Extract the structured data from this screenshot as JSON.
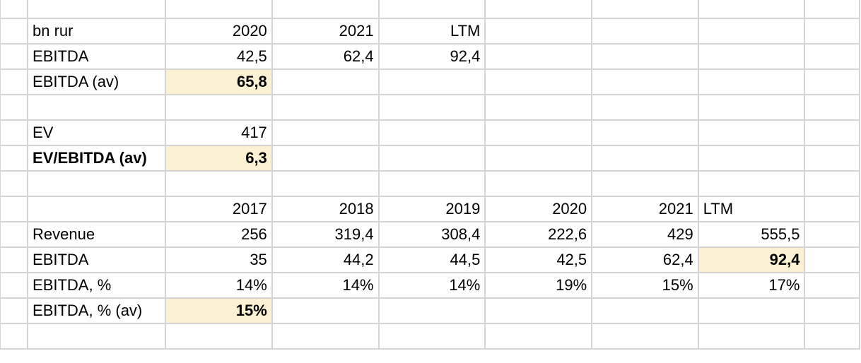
{
  "sheet": {
    "rows": [
      [
        "",
        "",
        "",
        "",
        "",
        "",
        "",
        "",
        ""
      ],
      [
        "",
        "bn rur",
        "2020",
        "2021",
        "LTM",
        "",
        "",
        "",
        ""
      ],
      [
        "",
        "EBITDA",
        "42,5",
        "62,4",
        "92,4",
        "",
        "",
        "",
        ""
      ],
      [
        "",
        "EBITDA (av)",
        "65,8",
        "",
        "",
        "",
        "",
        "",
        ""
      ],
      [
        "",
        "",
        "",
        "",
        "",
        "",
        "",
        "",
        ""
      ],
      [
        "",
        "EV",
        "417",
        "",
        "",
        "",
        "",
        "",
        ""
      ],
      [
        "",
        "EV/EBITDA (av)",
        "6,3",
        "",
        "",
        "",
        "",
        "",
        ""
      ],
      [
        "",
        "",
        "",
        "",
        "",
        "",
        "",
        "",
        ""
      ],
      [
        "",
        "",
        "2017",
        "2018",
        "2019",
        "2020",
        "2021",
        "LTM",
        ""
      ],
      [
        "",
        "Revenue",
        "256",
        "319,4",
        "308,4",
        "222,6",
        "429",
        "555,5",
        ""
      ],
      [
        "",
        "EBITDA",
        "35",
        "44,2",
        "44,5",
        "42,5",
        "62,4",
        "92,4",
        ""
      ],
      [
        "",
        "EBITDA, %",
        "14%",
        "14%",
        "14%",
        "19%",
        "15%",
        "17%",
        ""
      ],
      [
        "",
        "EBITDA, % (av)",
        "15%",
        "",
        "",
        "",
        "",
        "",
        ""
      ],
      [
        "",
        "",
        "",
        "",
        "",
        "",
        "",
        "",
        ""
      ]
    ],
    "highlight_color": "#fcf1d2",
    "grid_color": "#d4d4d4"
  }
}
